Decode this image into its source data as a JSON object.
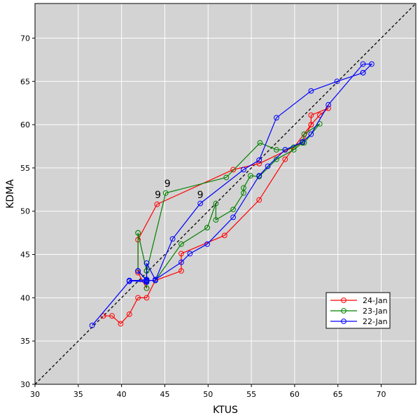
{
  "chart_data": {
    "type": "line",
    "xlabel": "KTUS",
    "ylabel": "KDMA",
    "xlim": [
      30,
      74
    ],
    "ylim": [
      30,
      74
    ],
    "xticks": [
      30,
      35,
      40,
      45,
      50,
      55,
      60,
      65,
      70
    ],
    "yticks": [
      30,
      35,
      40,
      45,
      50,
      55,
      60,
      65,
      70
    ],
    "grid": true,
    "background": "#d3d3d3",
    "reference_line": {
      "x": [
        30,
        74
      ],
      "y": [
        30,
        74
      ],
      "style": "dashed",
      "color": "#000000"
    },
    "legend_position": "lower-right",
    "annotations": [
      {
        "text": "9",
        "x": 44.2,
        "y": 51.5
      },
      {
        "text": "9",
        "x": 45.3,
        "y": 52.8
      },
      {
        "text": "9",
        "x": 49.1,
        "y": 51.5
      }
    ],
    "series": [
      {
        "name": "24-Jan",
        "color": "#ff0000",
        "x": [
          37.9,
          38.9,
          39.9,
          40.9,
          41.9,
          42.9,
          43.9,
          46.9,
          46.9,
          51.9,
          55.9,
          58.9,
          61.9,
          62.9,
          63.9,
          61.9,
          61.9,
          60.9,
          55.9,
          52.9,
          44.1,
          41.9,
          41.9,
          42.9
        ],
        "y": [
          37.9,
          37.9,
          37.0,
          38.1,
          40.0,
          40.0,
          42.0,
          43.1,
          45.1,
          47.2,
          51.3,
          56.0,
          60.0,
          61.1,
          61.9,
          61.1,
          60.0,
          57.9,
          55.5,
          54.8,
          50.8,
          46.7,
          42.9,
          41.1
        ]
      },
      {
        "name": "23-Jan",
        "color": "#008000",
        "x": [
          42.9,
          42.9,
          41.9,
          41.9,
          41.9,
          42.9,
          45.1,
          52.1,
          56.0,
          57.9,
          58.9,
          59.9,
          60.9,
          61.1,
          62.9,
          61.1,
          60.9,
          59.9,
          57.9,
          55.9,
          54.9,
          54.1,
          54.1,
          52.9,
          50.9,
          50.9,
          49.9,
          49.9,
          46.9,
          43.9,
          42.9,
          42.9
        ],
        "y": [
          41.1,
          42.1,
          43.1,
          47.5,
          47.5,
          43.1,
          52.1,
          53.9,
          57.9,
          57.1,
          57.1,
          57.4,
          58.0,
          58.9,
          60.1,
          57.9,
          57.9,
          57.1,
          56.0,
          54.0,
          54.1,
          52.7,
          52.1,
          50.2,
          49.0,
          50.9,
          48.1,
          48.1,
          46.2,
          42.0,
          42.0,
          43.1
        ]
      },
      {
        "name": "22-Jan",
        "color": "#0000ff",
        "x": [
          36.6,
          40.9,
          42.9,
          42.9,
          42.9,
          43.9,
          46.9,
          47.9,
          49.9,
          52.9,
          55.9,
          56.9,
          58.9,
          60.9,
          61.9,
          63.9,
          67.9,
          68.9,
          67.9,
          67.9,
          64.9,
          61.9,
          57.9,
          55.9,
          54.1,
          49.1,
          45.9,
          43.9,
          42.9,
          41.9,
          41.9,
          42.9,
          40.9,
          42.9
        ],
        "y": [
          36.8,
          41.9,
          42.1,
          41.9,
          44.0,
          42.1,
          44.1,
          45.1,
          46.2,
          49.3,
          54.1,
          55.2,
          57.1,
          58.0,
          58.9,
          62.3,
          67.0,
          67.0,
          66.0,
          66.0,
          65.0,
          63.9,
          60.8,
          55.9,
          54.8,
          50.9,
          46.8,
          42.0,
          42.0,
          43.1,
          43.1,
          42.0,
          42.0,
          41.8
        ]
      }
    ]
  }
}
